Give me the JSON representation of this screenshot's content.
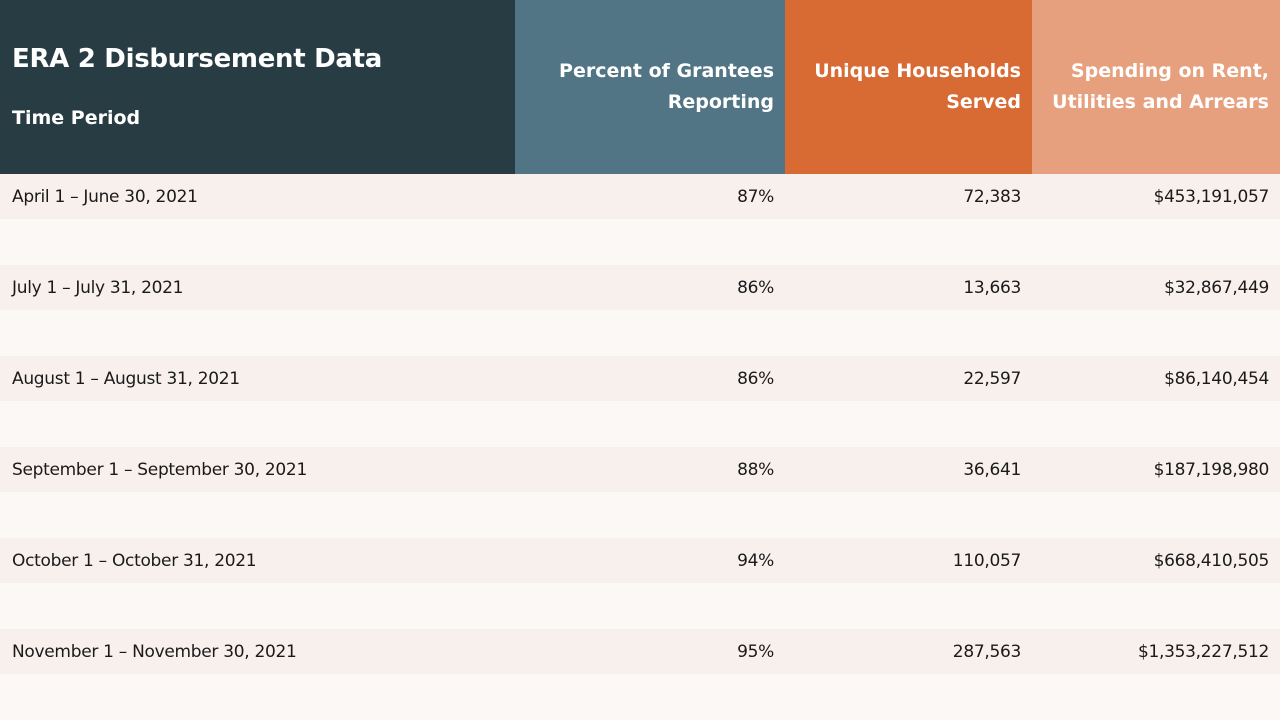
{
  "header": {
    "title": "ERA 2 Disbursement Data",
    "subtitle": "Time Period",
    "col1_line1": "Percent of Grantees",
    "col1_line2": "Reporting",
    "col2_line1": "Unique Households",
    "col2_line2": "Served",
    "col3_line1": "Spending on Rent,",
    "col3_line2": "Utilities and Arrears"
  },
  "colors": {
    "title_bg": "#283c44",
    "col1_bg": "#527585",
    "col2_bg": "#d86a34",
    "col3_bg": "#e7a07e",
    "row_bg": "#f8f0ed",
    "page_bg": "#fbf8f6"
  },
  "rows": [
    {
      "period": "April 1 – June 30, 2021",
      "percent": "87%",
      "households": "72,383",
      "spending": "$453,191,057"
    },
    {
      "period": "July 1 – July 31, 2021",
      "percent": "86%",
      "households": "13,663",
      "spending": "$32,867,449"
    },
    {
      "period": "August 1 – August 31, 2021",
      "percent": "86%",
      "households": "22,597",
      "spending": "$86,140,454"
    },
    {
      "period": "September 1 – September 30, 2021",
      "percent": "88%",
      "households": "36,641",
      "spending": "$187,198,980"
    },
    {
      "period": "October 1 – October 31, 2021",
      "percent": "94%",
      "households": "110,057",
      "spending": "$668,410,505"
    },
    {
      "period": "November 1 – November 30, 2021",
      "percent": "95%",
      "households": "287,563",
      "spending": "$1,353,227,512"
    }
  ]
}
